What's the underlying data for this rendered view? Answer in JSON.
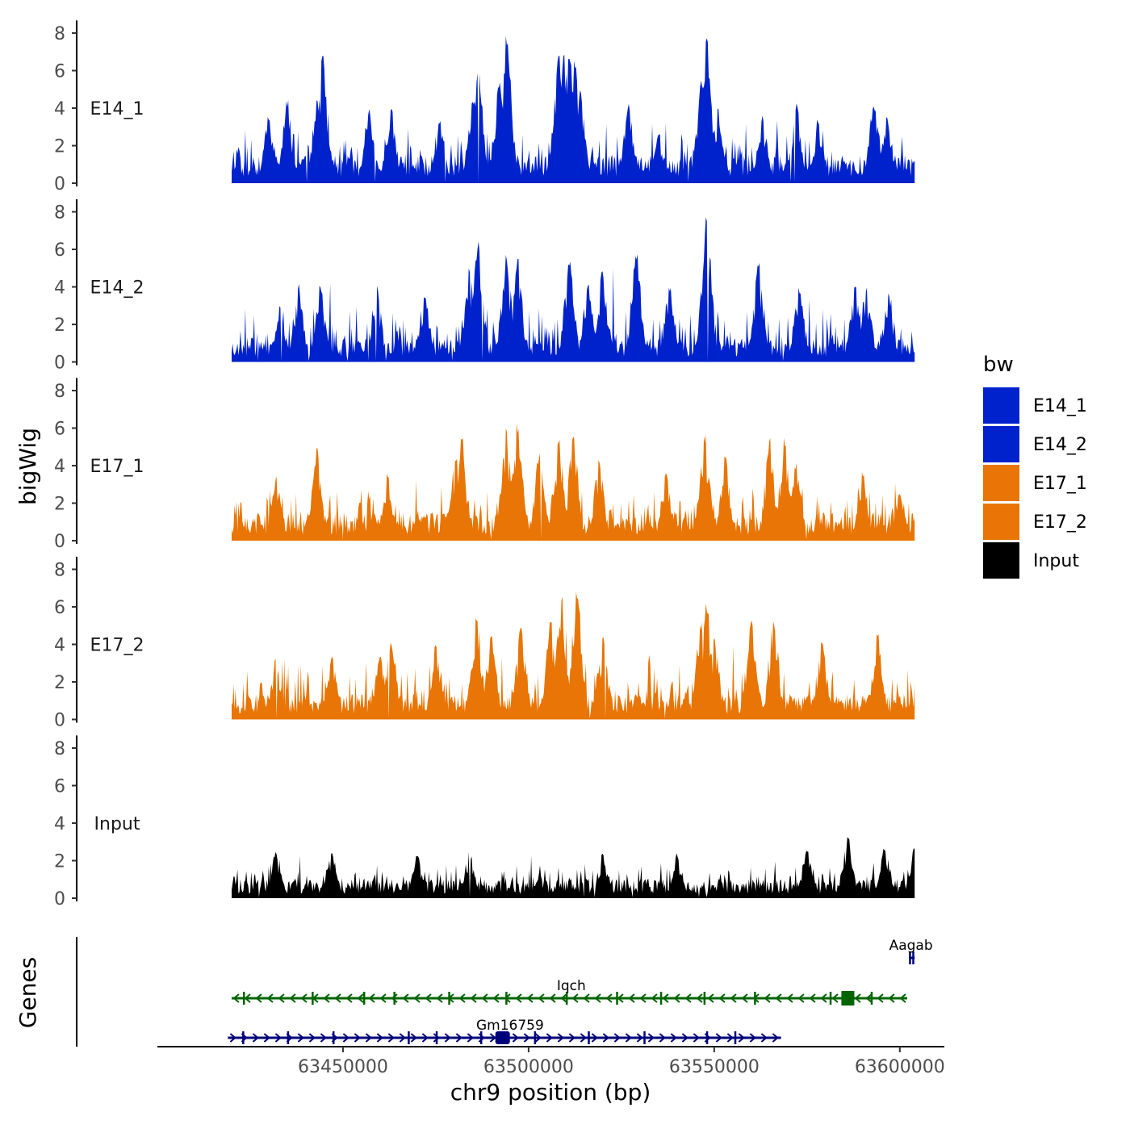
{
  "chart_data": {
    "type": "area",
    "y_axis_title": "bigWig",
    "x_axis_title": "chr9 position (bp)",
    "genes_label": "Genes",
    "x_range": [
      63400000,
      63612000
    ],
    "data_x_range": [
      63420000,
      63604000
    ],
    "y_range": [
      0,
      8.5
    ],
    "y_ticks": [
      0,
      2,
      4,
      6,
      8
    ],
    "x_ticks": [
      63450000,
      63500000,
      63550000,
      63600000
    ],
    "x_tick_labels": [
      "63450000",
      "63500000",
      "63550000",
      "63600000"
    ],
    "legend": {
      "title": "bw",
      "entries": [
        {
          "label": "E14_1",
          "color": "#0022CC"
        },
        {
          "label": "E14_2",
          "color": "#0022CC"
        },
        {
          "label": "E17_1",
          "color": "#E87505"
        },
        {
          "label": "E17_2",
          "color": "#E87505"
        },
        {
          "label": "Input",
          "color": "#000000"
        }
      ]
    },
    "tracks": [
      {
        "name": "E14_1",
        "color": "#0022CC",
        "baseline": 1.3,
        "noise": 1.6,
        "seed": 11,
        "peaks": [
          [
            63430000,
            3.6
          ],
          [
            63435000,
            4.5
          ],
          [
            63443000,
            4.6
          ],
          [
            63444500,
            6.8
          ],
          [
            63457000,
            4.0
          ],
          [
            63463000,
            4.0
          ],
          [
            63476000,
            3.5
          ],
          [
            63485000,
            4.5
          ],
          [
            63486500,
            6.3
          ],
          [
            63494000,
            7.9
          ],
          [
            63492000,
            5.4
          ],
          [
            63508000,
            6.9
          ],
          [
            63509500,
            7.2
          ],
          [
            63511000,
            7.0
          ],
          [
            63512500,
            6.6
          ],
          [
            63514000,
            5.0
          ],
          [
            63527000,
            4.3
          ],
          [
            63535000,
            2.8
          ],
          [
            63546500,
            5.6
          ],
          [
            63548000,
            7.9
          ],
          [
            63551000,
            4.0
          ],
          [
            63563000,
            3.6
          ],
          [
            63572000,
            4.3
          ],
          [
            63578000,
            3.4
          ],
          [
            63593000,
            4.3
          ],
          [
            63596500,
            3.6
          ]
        ]
      },
      {
        "name": "E14_2",
        "color": "#0022CC",
        "baseline": 1.1,
        "noise": 1.7,
        "seed": 23,
        "peaks": [
          [
            63433000,
            3.2
          ],
          [
            63438000,
            4.2
          ],
          [
            63444000,
            4.1
          ],
          [
            63459000,
            4.1
          ],
          [
            63472000,
            3.6
          ],
          [
            63484000,
            5.2
          ],
          [
            63486500,
            6.6
          ],
          [
            63494000,
            5.8
          ],
          [
            63497000,
            5.5
          ],
          [
            63511000,
            5.6
          ],
          [
            63516000,
            4.2
          ],
          [
            63520000,
            5.0
          ],
          [
            63529000,
            6.0
          ],
          [
            63538000,
            4.0
          ],
          [
            63548000,
            8.0
          ],
          [
            63547500,
            5.8
          ],
          [
            63562000,
            5.4
          ],
          [
            63573000,
            4.0
          ],
          [
            63588000,
            4.1
          ],
          [
            63591000,
            4.0
          ],
          [
            63597000,
            3.8
          ]
        ]
      },
      {
        "name": "E17_1",
        "color": "#E87505",
        "baseline": 1.3,
        "noise": 1.5,
        "seed": 37,
        "peaks": [
          [
            63432000,
            3.5
          ],
          [
            63443000,
            5.0
          ],
          [
            63462000,
            3.6
          ],
          [
            63482000,
            5.6
          ],
          [
            63480500,
            4.6
          ],
          [
            63494000,
            6.3
          ],
          [
            63497000,
            6.3
          ],
          [
            63503000,
            4.8
          ],
          [
            63508000,
            5.5
          ],
          [
            63512000,
            5.6
          ],
          [
            63519000,
            4.4
          ],
          [
            63537000,
            3.6
          ],
          [
            63547500,
            5.7
          ],
          [
            63553000,
            4.5
          ],
          [
            63565000,
            5.6
          ],
          [
            63569000,
            5.6
          ],
          [
            63572000,
            4.2
          ],
          [
            63590000,
            3.8
          ],
          [
            63600000,
            2.5
          ]
        ]
      },
      {
        "name": "E17_2",
        "color": "#E87505",
        "baseline": 1.2,
        "noise": 1.7,
        "seed": 53,
        "peaks": [
          [
            63432000,
            3.3
          ],
          [
            63447000,
            3.5
          ],
          [
            63460000,
            3.4
          ],
          [
            63463000,
            4.3
          ],
          [
            63475000,
            4.1
          ],
          [
            63486000,
            5.6
          ],
          [
            63490000,
            4.5
          ],
          [
            63498000,
            5.0
          ],
          [
            63506000,
            5.3
          ],
          [
            63509000,
            6.8
          ],
          [
            63513000,
            6.9
          ],
          [
            63520000,
            4.4
          ],
          [
            63546500,
            5.2
          ],
          [
            63548000,
            6.2
          ],
          [
            63550000,
            4.4
          ],
          [
            63560000,
            5.5
          ],
          [
            63566000,
            5.5
          ],
          [
            63579000,
            4.3
          ],
          [
            63594000,
            4.7
          ]
        ]
      },
      {
        "name": "Input",
        "color": "#000000",
        "baseline": 0.9,
        "noise": 0.9,
        "seed": 71,
        "peaks": [
          [
            63432000,
            2.6
          ],
          [
            63447000,
            2.4
          ],
          [
            63470000,
            2.3
          ],
          [
            63484000,
            2.5
          ],
          [
            63520000,
            2.4
          ],
          [
            63540000,
            2.4
          ],
          [
            63575000,
            2.6
          ],
          [
            63586000,
            3.4
          ],
          [
            63596000,
            2.8
          ],
          [
            63604000,
            2.9
          ]
        ]
      }
    ],
    "genes": [
      {
        "name": "Aagab",
        "color": "#00007A",
        "strand": "+",
        "start": 63602500,
        "end": 63604000,
        "row": 0,
        "label_x": 63603000
      },
      {
        "name": "Iqch",
        "color": "#006400",
        "strand": "-",
        "start": 63420000,
        "end": 63602000,
        "row": 1,
        "label_x": 63511500
      },
      {
        "name": "Gm16759",
        "color": "#00007A",
        "strand": "+",
        "start": 63419000,
        "end": 63568000,
        "row": 2,
        "label_x": 63495000
      }
    ]
  }
}
